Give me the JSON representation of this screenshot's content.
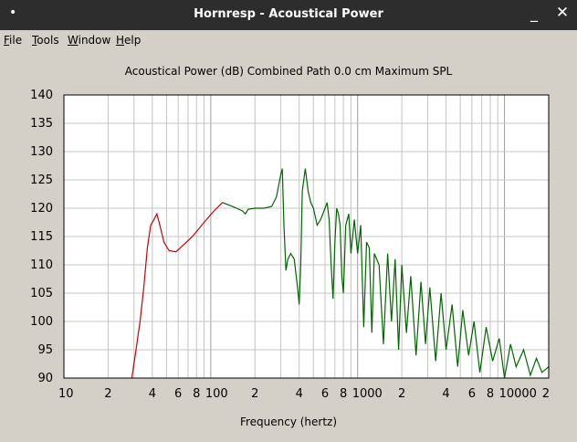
{
  "window": {
    "title": "Hornresp - Acoustical Power",
    "dot": "•",
    "minimize_label": "_",
    "close_label": "✕"
  },
  "menu": [
    {
      "underline": "F",
      "rest": "ile"
    },
    {
      "underline": "T",
      "rest": "ools"
    },
    {
      "underline": "W",
      "rest": "indow"
    },
    {
      "underline": "H",
      "rest": "elp"
    }
  ],
  "colors": {
    "background": "#d4d0c8",
    "plot_background": "#ffffff",
    "grid": "#c4c4c4",
    "series_low": "#cc0000",
    "series_high": "#006600"
  },
  "chart_data": {
    "type": "line",
    "title": "Acoustical Power (dB)   Combined   Path 0.0 cm   Maximum SPL",
    "xlabel": "Frequency (hertz)",
    "ylabel": "",
    "xscale": "log",
    "xlim": [
      10,
      20000
    ],
    "ylim": [
      90,
      140
    ],
    "grid": true,
    "y_ticks": [
      "140",
      "135",
      "130",
      "125",
      "120",
      "115",
      "110",
      "105",
      "100",
      "95",
      "90"
    ],
    "x_tick_labels": [
      {
        "f": 10,
        "label": "10"
      },
      {
        "f": 20,
        "label": "2"
      },
      {
        "f": 40,
        "label": "4"
      },
      {
        "f": 60,
        "label": "6"
      },
      {
        "f": 80,
        "label": "8"
      },
      {
        "f": 100,
        "label": "100"
      },
      {
        "f": 200,
        "label": "2"
      },
      {
        "f": 400,
        "label": "4"
      },
      {
        "f": 600,
        "label": "6"
      },
      {
        "f": 800,
        "label": "8"
      },
      {
        "f": 1000,
        "label": "1000"
      },
      {
        "f": 2000,
        "label": "2"
      },
      {
        "f": 4000,
        "label": "4"
      },
      {
        "f": 6000,
        "label": "6"
      },
      {
        "f": 8000,
        "label": "8"
      },
      {
        "f": 10000,
        "label": "10000"
      },
      {
        "f": 20000,
        "label": "2"
      }
    ],
    "series": [
      {
        "color": "#cc0000",
        "x": [
          29,
          31,
          33,
          35,
          37,
          39,
          41,
          43,
          45,
          48,
          52,
          58,
          65,
          75,
          90,
          105,
          120
        ],
        "y": [
          90,
          95,
          100,
          106,
          113,
          117,
          118,
          119,
          117,
          114,
          112.5,
          112.3,
          113.5,
          115,
          117.5,
          119.5,
          121
        ]
      },
      {
        "color": "#006600",
        "x": [
          120,
          135,
          150,
          165,
          172,
          180,
          200,
          230,
          260,
          280,
          300,
          307,
          315,
          325,
          335,
          350,
          370,
          390,
          400,
          410,
          420,
          440,
          460,
          480,
          500,
          530,
          560,
          600,
          620,
          640,
          660,
          680,
          700,
          720,
          740,
          760,
          780,
          800,
          830,
          870,
          900,
          950,
          1000,
          1050,
          1100,
          1150,
          1200,
          1250,
          1300,
          1400,
          1500,
          1600,
          1700,
          1800,
          1900,
          2000,
          2150,
          2300,
          2500,
          2700,
          2900,
          3100,
          3400,
          3700,
          4000,
          4400,
          4800,
          5200,
          5700,
          6200,
          6800,
          7500,
          8300,
          9200,
          10000,
          11000,
          12000,
          13500,
          15000,
          16500,
          18000,
          20000
        ],
        "y": [
          121,
          120.5,
          120,
          119.5,
          119,
          119.8,
          120,
          120,
          120.3,
          122,
          126,
          127,
          117,
          109,
          111,
          112,
          111,
          106,
          103,
          110,
          123,
          127,
          123,
          121,
          120,
          117,
          118,
          120,
          121,
          118,
          110,
          104,
          114,
          120,
          119,
          117,
          108,
          105,
          117,
          119,
          112,
          118,
          112,
          117,
          99,
          114,
          113,
          98,
          112,
          110,
          96,
          112,
          100,
          111,
          95,
          110,
          98,
          108,
          94,
          107,
          96,
          106,
          93,
          105,
          95,
          103,
          92,
          102,
          94,
          100,
          91,
          99,
          93,
          97,
          90,
          96,
          92,
          95,
          90.5,
          93.5,
          91,
          92
        ]
      }
    ]
  }
}
